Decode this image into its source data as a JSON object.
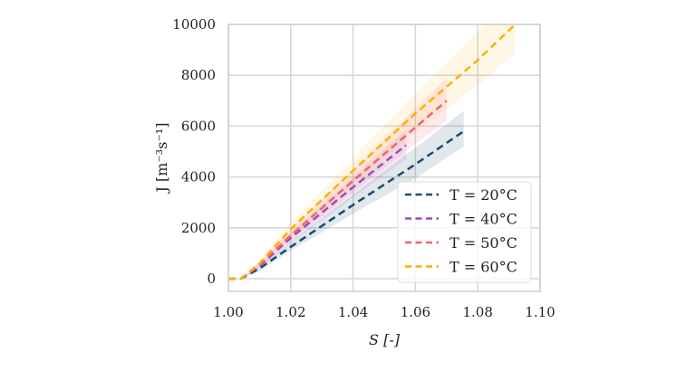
{
  "chart_data": {
    "type": "line",
    "title": "",
    "xlabel": "S [-]",
    "ylabel": "J [m⁻³s⁻¹]",
    "xlim": [
      1.0,
      1.1
    ],
    "ylim": [
      -500,
      10000
    ],
    "xticks": [
      "1.00",
      "1.02",
      "1.04",
      "1.06",
      "1.08",
      "1.10"
    ],
    "xtick_values": [
      1.0,
      1.02,
      1.04,
      1.06,
      1.08,
      1.1
    ],
    "yticks": [
      "0",
      "2000",
      "4000",
      "6000",
      "8000",
      "10000"
    ],
    "ytick_values": [
      0,
      2000,
      4000,
      6000,
      8000,
      10000
    ],
    "grid": true,
    "legend_placement": "bottom-right",
    "series": [
      {
        "name": "T = 20°C",
        "color": "#1b4a70",
        "x": [
          1.0,
          1.004,
          1.01,
          1.02,
          1.04,
          1.06,
          1.0755
        ],
        "y": [
          0,
          0,
          400,
          1250,
          2900,
          4500,
          5800
        ],
        "band_lower": [
          0,
          0,
          300,
          1100,
          2550,
          3950,
          5200
        ],
        "band_upper": [
          0,
          0,
          500,
          1450,
          3300,
          5150,
          6600
        ]
      },
      {
        "name": "T = 40°C",
        "color": "#9c4fae",
        "x": [
          1.0,
          1.004,
          1.01,
          1.02,
          1.04,
          1.057
        ],
        "y": [
          0,
          0,
          500,
          1600,
          3600,
          5250
        ],
        "band_lower": [
          0,
          0,
          400,
          1400,
          3200,
          4700
        ],
        "band_upper": [
          0,
          0,
          600,
          1800,
          4000,
          5850
        ]
      },
      {
        "name": "T = 50°C",
        "color": "#f4606f",
        "x": [
          1.0,
          1.004,
          1.01,
          1.02,
          1.04,
          1.06,
          1.07
        ],
        "y": [
          0,
          0,
          550,
          1700,
          3850,
          5950,
          7000
        ],
        "band_lower": [
          0,
          0,
          450,
          1500,
          3400,
          5300,
          6200
        ],
        "band_upper": [
          0,
          0,
          650,
          1950,
          4300,
          6700,
          7900
        ]
      },
      {
        "name": "T = 60°C",
        "color": "#ffae00",
        "x": [
          1.0,
          1.004,
          1.01,
          1.02,
          1.04,
          1.06,
          1.08,
          1.092
        ],
        "y": [
          0,
          0,
          600,
          1950,
          4250,
          6500,
          8600,
          10000
        ],
        "band_lower": [
          0,
          0,
          500,
          1700,
          3750,
          5750,
          7600,
          8850
        ],
        "band_upper": [
          0,
          0,
          700,
          2200,
          4750,
          7300,
          9700,
          11300
        ]
      }
    ]
  }
}
